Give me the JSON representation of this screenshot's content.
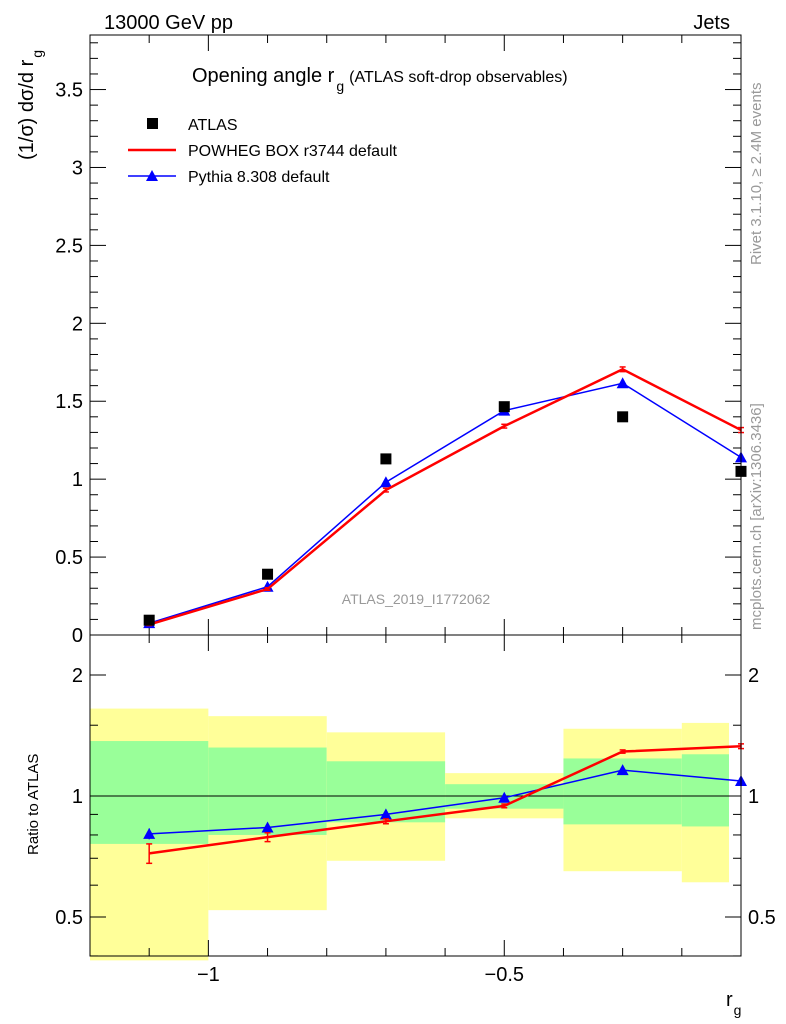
{
  "header": {
    "energy_label": "13000 GeV pp",
    "process_label": "Jets"
  },
  "side": {
    "rivet": "Rivet 3.1.10, ≥ 2.4M events",
    "mcplots": "mcplots.cern.ch [arXiv:1306.3436]"
  },
  "colors": {
    "atlas": "#000000",
    "powheg": "#ff0000",
    "pythia": "#0000ff",
    "band_inner": "#99ff99",
    "band_outer": "#ffff99",
    "watermark": "#999999"
  },
  "chart_data": [
    {
      "type": "scatter",
      "title_main": "Opening angle r",
      "title_sub": "g",
      "title_extra": "(ATLAS soft-drop observables)",
      "ylabel_main": "(1/σ) dσ/d r",
      "ylabel_sub": "g",
      "watermark": "ATLAS_2019_I1772062",
      "xlim": [
        -1.2,
        -0.1
      ],
      "ylim": [
        0,
        3.85
      ],
      "yticks": [
        0,
        0.5,
        1,
        1.5,
        2,
        2.5,
        3,
        3.5
      ],
      "ytick_labels": [
        "0",
        "0.5",
        "1",
        "1.5",
        "2",
        "2.5",
        "3",
        "3.5"
      ],
      "legend_position": "top-left",
      "series": [
        {
          "name": "ATLAS",
          "style": "marker-square",
          "x": [
            -1.1,
            -0.9,
            -0.7,
            -0.5,
            -0.3,
            -0.1
          ],
          "y": [
            0.095,
            0.39,
            1.13,
            1.465,
            1.4,
            1.05
          ]
        },
        {
          "name": "POWHEG BOX r3744 default",
          "style": "line",
          "x": [
            -1.1,
            -0.9,
            -0.7,
            -0.5,
            -0.3,
            -0.1
          ],
          "y": [
            0.067,
            0.295,
            0.93,
            1.34,
            1.705,
            1.315
          ],
          "err": [
            0.006,
            0.008,
            0.012,
            0.012,
            0.015,
            0.016
          ]
        },
        {
          "name": "Pythia 8.308 default",
          "style": "line-triangle",
          "x": [
            -1.1,
            -0.9,
            -0.7,
            -0.5,
            -0.3,
            -0.1
          ],
          "y": [
            0.076,
            0.31,
            0.98,
            1.44,
            1.615,
            1.14
          ]
        }
      ]
    },
    {
      "type": "line",
      "ylabel": "Ratio to ATLAS",
      "xlabel_main": "r",
      "xlabel_sub": "g",
      "xlim": [
        -1.2,
        -0.1
      ],
      "ylim": [
        0.35,
        2.2
      ],
      "yticks": [
        0.5,
        1,
        2
      ],
      "ytick_labels": [
        "0.5",
        "1",
        "2"
      ],
      "xticks": [
        -1,
        -0.5
      ],
      "xtick_labels": [
        "−1",
        "−0.5"
      ],
      "bins": [
        {
          "lo": -1.2,
          "hi": -1.0,
          "inner": [
            0.76,
            1.37
          ],
          "outer": [
            0.39,
            1.65
          ]
        },
        {
          "lo": -1.0,
          "hi": -0.8,
          "inner": [
            0.8,
            1.32
          ],
          "outer": [
            0.52,
            1.58
          ]
        },
        {
          "lo": -0.8,
          "hi": -0.6,
          "inner": [
            0.86,
            1.22
          ],
          "outer": [
            0.69,
            1.44
          ]
        },
        {
          "lo": -0.6,
          "hi": -0.4,
          "inner": [
            0.93,
            1.07
          ],
          "outer": [
            0.88,
            1.14
          ]
        },
        {
          "lo": -0.4,
          "hi": -0.2,
          "inner": [
            0.85,
            1.24
          ],
          "outer": [
            0.65,
            1.47
          ]
        },
        {
          "lo": -0.2,
          "hi": 0.0,
          "inner": [
            0.84,
            1.27
          ],
          "outer": [
            0.61,
            1.52
          ]
        }
      ],
      "series": [
        {
          "name": "POWHEG BOX r3744 default",
          "x": [
            -1.1,
            -0.9,
            -0.7,
            -0.5,
            -0.3,
            -0.1
          ],
          "y": [
            0.72,
            0.79,
            0.865,
            0.945,
            1.29,
            1.33
          ],
          "err": [
            0.04,
            0.02,
            0.012,
            0.01,
            0.012,
            0.018
          ]
        },
        {
          "name": "Pythia 8.308 default",
          "x": [
            -1.1,
            -0.9,
            -0.7,
            -0.5,
            -0.3,
            -0.1
          ],
          "y": [
            0.805,
            0.835,
            0.9,
            0.99,
            1.16,
            1.09
          ],
          "err": [
            0.025,
            0.012,
            0.01,
            0.008,
            0.01,
            0.012
          ]
        }
      ]
    }
  ]
}
